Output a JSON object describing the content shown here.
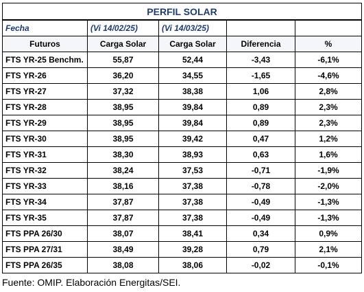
{
  "title": "PERFIL SOLAR",
  "fecha_label": "Fecha",
  "dates": [
    "(Vi 14/02/25)",
    "(Vi 14/03/25)"
  ],
  "columns": [
    "Futuros",
    "Carga Solar",
    "Carga Solar",
    "Diferencia",
    "%"
  ],
  "rows": [
    {
      "name": "FTS YR-25 Benchm.",
      "v1": "55,87",
      "v2": "52,44",
      "diff": "-3,43",
      "pct": "-6,1%"
    },
    {
      "name": "FTS YR-26",
      "v1": "36,20",
      "v2": "34,55",
      "diff": "-1,65",
      "pct": "-4,6%"
    },
    {
      "name": "FTS YR-27",
      "v1": "37,32",
      "v2": "38,38",
      "diff": "1,06",
      "pct": "2,8%"
    },
    {
      "name": "FTS YR-28",
      "v1": "38,95",
      "v2": "39,84",
      "diff": "0,89",
      "pct": "2,3%"
    },
    {
      "name": "FTS YR-29",
      "v1": "38,95",
      "v2": "39,84",
      "diff": "0,89",
      "pct": "2,3%"
    },
    {
      "name": "FTS YR-30",
      "v1": "38,95",
      "v2": "39,42",
      "diff": "0,47",
      "pct": "1,2%"
    },
    {
      "name": "FTS YR-31",
      "v1": "38,30",
      "v2": "38,93",
      "diff": "0,63",
      "pct": "1,6%"
    },
    {
      "name": "FTS YR-32",
      "v1": "38,24",
      "v2": "37,53",
      "diff": "-0,71",
      "pct": "-1,9%"
    },
    {
      "name": "FTS YR-33",
      "v1": "38,16",
      "v2": "37,38",
      "diff": "-0,78",
      "pct": "-2,0%"
    },
    {
      "name": "FTS YR-34",
      "v1": "37,87",
      "v2": "37,38",
      "diff": "-0,49",
      "pct": "-1,3%"
    },
    {
      "name": "FTS YR-35",
      "v1": "37,87",
      "v2": "37,38",
      "diff": "-0,49",
      "pct": "-1,3%"
    },
    {
      "name": "FTS PPA 26/30",
      "v1": "38,07",
      "v2": "38,41",
      "diff": "0,34",
      "pct": "0,9%"
    },
    {
      "name": "FTS PPA 27/31",
      "v1": "38,49",
      "v2": "39,28",
      "diff": "0,79",
      "pct": "2,1%"
    },
    {
      "name": "FTS PPA 26/35",
      "v1": "38,08",
      "v2": "38,06",
      "diff": "-0,02",
      "pct": "-0,1%"
    }
  ],
  "source": "Fuente: OMIP. Elaboración Energitas/SEI."
}
